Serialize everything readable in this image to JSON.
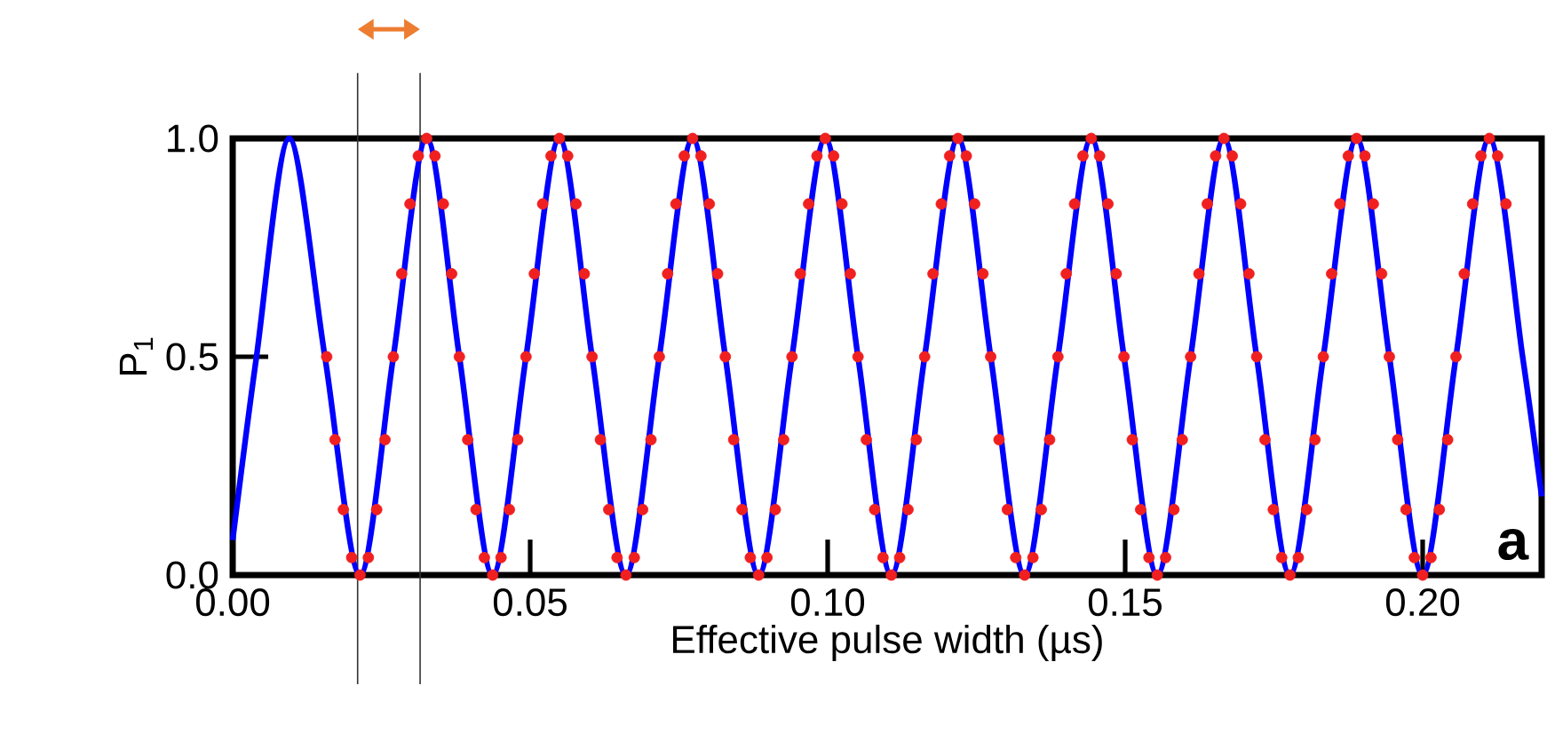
{
  "chart_data": {
    "type": "line",
    "xlabel": "Effective pulse width (µs)",
    "ylabel": "P$_{1}$",
    "xlim": [
      0,
      0.22
    ],
    "ylim": [
      0,
      1
    ],
    "xticks": [
      {
        "value": 0,
        "label": "0.00"
      },
      {
        "value": 0.05,
        "label": "0.05"
      },
      {
        "value": 0.1,
        "label": "0.10"
      },
      {
        "value": 0.15,
        "label": "0.15"
      },
      {
        "value": 0.2,
        "label": "0.20"
      }
    ],
    "yticks": [
      {
        "value": 0,
        "label": "0.0"
      },
      {
        "value": 0.5,
        "label": "0.5"
      },
      {
        "value": 1,
        "label": "1.0"
      }
    ],
    "annotations": [
      "**a**"
    ],
    "ref_lines": [
      {
        "axis": "x",
        "value": 0.021,
        "color": "#333333"
      },
      {
        "axis": "x",
        "value": 0.0315,
        "color": "#333333"
      }
    ],
    "series": [
      {
        "type": "scatter",
        "color": "#f02020",
        "marker": "circle",
        "x": [
          0.0158,
          0.0172,
          0.0186,
          0.02,
          0.0214,
          0.0228,
          0.0242,
          0.0256,
          0.027,
          0.0284,
          0.0298,
          0.0312,
          0.0326,
          0.034,
          0.0354,
          0.0368,
          0.0381,
          0.0395,
          0.0409,
          0.0423,
          0.0437,
          0.0451,
          0.0465,
          0.0479,
          0.0493,
          0.0507,
          0.0521,
          0.0535,
          0.0549,
          0.0563,
          0.0577,
          0.0591,
          0.0604,
          0.0618,
          0.0632,
          0.0646,
          0.0661,
          0.0675,
          0.0689,
          0.0703,
          0.0717,
          0.0731,
          0.0745,
          0.0759,
          0.0773,
          0.0787,
          0.0801,
          0.0815,
          0.0828,
          0.0842,
          0.0856,
          0.087,
          0.0884,
          0.0898,
          0.0912,
          0.0926,
          0.094,
          0.0954,
          0.0968,
          0.0982,
          0.0996,
          0.101,
          0.1024,
          0.1038,
          0.1051,
          0.1065,
          0.1079,
          0.1093,
          0.1107,
          0.1121,
          0.1135,
          0.1149,
          0.1163,
          0.1177,
          0.1191,
          0.1205,
          0.1219,
          0.1233,
          0.1247,
          0.1261,
          0.1274,
          0.1288,
          0.1302,
          0.1316,
          0.1331,
          0.1345,
          0.1359,
          0.1373,
          0.1387,
          0.1401,
          0.1415,
          0.1429,
          0.1443,
          0.1457,
          0.1471,
          0.1485,
          0.1498,
          0.1512,
          0.1526,
          0.154,
          0.1554,
          0.1568,
          0.1582,
          0.1596,
          0.161,
          0.1624,
          0.1638,
          0.1652,
          0.1666,
          0.168,
          0.1694,
          0.1708,
          0.1721,
          0.1735,
          0.1749,
          0.1763,
          0.1777,
          0.1791,
          0.1805,
          0.1819,
          0.1833,
          0.1847,
          0.1861,
          0.1875,
          0.1889,
          0.1903,
          0.1917,
          0.1931,
          0.1944,
          0.1958,
          0.1972,
          0.1986,
          0.2,
          0.2014,
          0.2028,
          0.2042,
          0.2056,
          0.207,
          0.2084,
          0.2098,
          0.2112,
          0.2126,
          0.214
        ],
        "values": [
          0.5,
          0.31,
          0.15,
          0.04,
          0,
          0.04,
          0.15,
          0.31,
          0.5,
          0.69,
          0.85,
          0.96,
          1,
          0.96,
          0.85,
          0.69,
          0.5,
          0.31,
          0.15,
          0.04,
          0,
          0.04,
          0.15,
          0.31,
          0.5,
          0.69,
          0.85,
          0.96,
          1,
          0.96,
          0.85,
          0.69,
          0.5,
          0.31,
          0.15,
          0.04,
          0,
          0.04,
          0.15,
          0.31,
          0.5,
          0.69,
          0.85,
          0.96,
          1,
          0.96,
          0.85,
          0.69,
          0.5,
          0.31,
          0.15,
          0.04,
          0,
          0.04,
          0.15,
          0.31,
          0.5,
          0.69,
          0.85,
          0.96,
          1,
          0.96,
          0.85,
          0.69,
          0.5,
          0.31,
          0.15,
          0.04,
          0,
          0.04,
          0.15,
          0.31,
          0.5,
          0.69,
          0.85,
          0.96,
          1,
          0.96,
          0.85,
          0.69,
          0.5,
          0.31,
          0.15,
          0.04,
          0,
          0.04,
          0.15,
          0.31,
          0.5,
          0.69,
          0.85,
          0.96,
          1,
          0.96,
          0.85,
          0.69,
          0.5,
          0.31,
          0.15,
          0.04,
          0,
          0.04,
          0.15,
          0.31,
          0.5,
          0.69,
          0.85,
          0.96,
          1,
          0.96,
          0.85,
          0.69,
          0.5,
          0.31,
          0.15,
          0.04,
          0,
          0.04,
          0.15,
          0.31,
          0.5,
          0.69,
          0.85,
          0.96,
          1,
          0.96,
          0.85,
          0.69,
          0.5,
          0.31,
          0.15,
          0.04,
          0,
          0.04,
          0.15,
          0.31,
          0.5,
          0.69,
          0.85,
          0.96,
          1,
          0.96,
          0.85
        ]
      },
      {
        "type": "line",
        "color": "#0000ff",
        "marker": "none",
        "line_style": "solid",
        "x": [
          0,
          0.004,
          0.0095,
          0.0155,
          0.0214,
          0.027,
          0.0326,
          0.0381,
          0.0437,
          0.0493,
          0.0549,
          0.0604,
          0.0661,
          0.0717,
          0.0773,
          0.0828,
          0.0884,
          0.094,
          0.0996,
          0.1051,
          0.1107,
          0.1163,
          0.1219,
          0.1274,
          0.1331,
          0.1387,
          0.1443,
          0.1498,
          0.1554,
          0.161,
          0.1666,
          0.1721,
          0.1777,
          0.1833,
          0.1889,
          0.1944,
          0.2,
          0.2056,
          0.2112,
          0.2168,
          0.22
        ],
        "values": [
          0.08,
          0.5,
          1,
          0.5,
          0,
          0.5,
          1,
          0.5,
          0,
          0.5,
          1,
          0.5,
          0,
          0.5,
          1,
          0.5,
          0,
          0.5,
          1,
          0.5,
          0,
          0.5,
          1,
          0.5,
          0,
          0.5,
          1,
          0.5,
          0,
          0.5,
          1,
          0.5,
          0,
          0.5,
          1,
          0.5,
          0,
          0.5,
          1,
          0.5,
          0.18
        ]
      }
    ]
  }
}
